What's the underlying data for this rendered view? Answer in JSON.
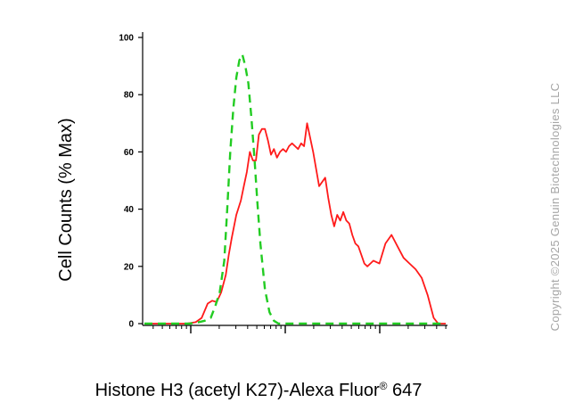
{
  "chart_data": {
    "type": "line",
    "title": "",
    "xlabel_main": "Histone H3 (acetyl K27)-Alexa Fluor",
    "xlabel_sup": "®",
    "xlabel_end": " 647",
    "ylabel": "Cell Counts (% Max)",
    "ylim": [
      0,
      100
    ],
    "yticks": [
      0,
      20,
      40,
      60,
      80,
      100
    ],
    "yticklabels": [
      "0",
      "20",
      "40",
      "60",
      "80",
      "100"
    ],
    "xlim": [
      0,
      100
    ],
    "xscale": "log",
    "xtick_labels_shown": false,
    "grid": false,
    "legend": "none",
    "series": [
      {
        "style": "solid",
        "color": "#ff1a1a",
        "x": [
          0,
          10,
          14,
          17,
          19,
          21,
          22.5,
          24,
          25.5,
          27,
          28,
          29,
          30.5,
          32,
          33,
          34,
          35,
          36,
          37,
          38,
          39,
          40,
          41,
          42,
          43,
          44,
          45,
          46,
          47,
          48,
          49,
          50,
          51,
          52,
          53,
          54,
          56,
          58,
          60,
          61,
          62,
          63,
          64,
          65,
          66,
          67,
          68,
          69,
          70,
          71,
          72,
          73,
          74,
          75,
          76,
          78,
          80,
          82,
          84,
          86,
          88,
          90,
          92,
          94,
          96,
          97.5,
          100
        ],
        "y": [
          0,
          0,
          0,
          0.5,
          2,
          7,
          8,
          7.5,
          11,
          17,
          24,
          30,
          38,
          43,
          48,
          53,
          60,
          57,
          57,
          66,
          68,
          68,
          64,
          59,
          61,
          58,
          60,
          61,
          60,
          62,
          63,
          62,
          61,
          63,
          62,
          70,
          60,
          48,
          51,
          44,
          38,
          34,
          38,
          36,
          39,
          36,
          35,
          31,
          28,
          27,
          24,
          21,
          20,
          21,
          22,
          21,
          28,
          31,
          27,
          23,
          21,
          19,
          16,
          10,
          2,
          0,
          0
        ]
      },
      {
        "style": "dashed",
        "color": "#22cc22",
        "x": [
          0,
          15,
          18,
          20,
          22,
          23.5,
          25,
          26.5,
          27.5,
          28.5,
          29.5,
          30.5,
          31.5,
          32.5,
          33.5,
          34.5,
          35.5,
          36.5,
          37.5,
          38.5,
          40,
          41.5,
          43,
          44.5,
          46,
          100
        ],
        "y": [
          0,
          0,
          0.5,
          1,
          2,
          6,
          11,
          22,
          40,
          60,
          75,
          86,
          92,
          94,
          90,
          84,
          72,
          58,
          42,
          28,
          12,
          4,
          1,
          0,
          0,
          0
        ]
      }
    ]
  },
  "copyright": "Copyright ©2025 Genuin Biotechnologies LLC",
  "colors": {
    "axis": "#000000",
    "positive": "#ff1a1a",
    "control": "#22cc22",
    "watermark": "#a6a6a6"
  }
}
